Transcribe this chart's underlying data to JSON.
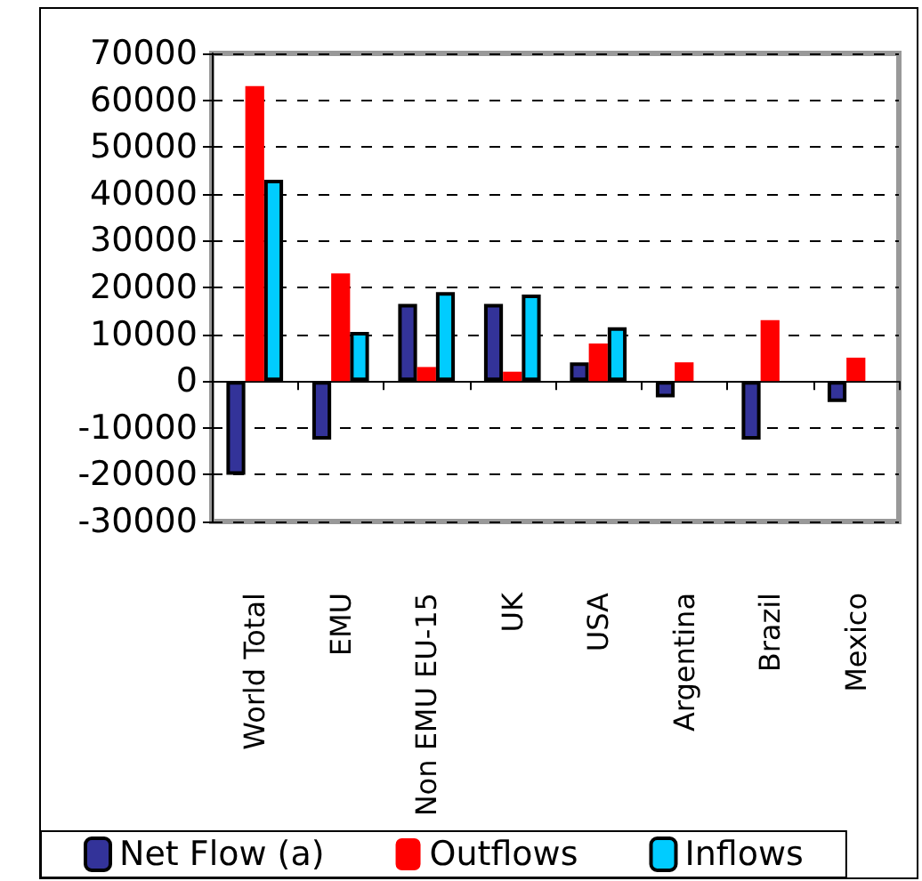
{
  "chart_data": {
    "type": "bar",
    "categories": [
      "World Total",
      "EMU",
      "Non EMU EU-15",
      "UK",
      "USA",
      "Argentina",
      "Brazil",
      "Mexico"
    ],
    "series": [
      {
        "name": "Net Flow (a)",
        "color": "#333399",
        "values": [
          -20000,
          -12500,
          16500,
          16500,
          4000,
          -3500,
          -12500,
          -4500
        ]
      },
      {
        "name": "Outflows",
        "color": "#ff0000",
        "values": [
          63000,
          23000,
          3000,
          2000,
          8000,
          4000,
          13000,
          5000
        ]
      },
      {
        "name": "Inflows",
        "color": "#00ccff",
        "values": [
          43000,
          10500,
          19000,
          18500,
          11500,
          null,
          null,
          null
        ]
      }
    ],
    "ylim": [
      -30000,
      70000
    ],
    "yticks": [
      -30000,
      -20000,
      -10000,
      0,
      10000,
      20000,
      30000,
      40000,
      50000,
      60000,
      70000
    ],
    "grid": "y",
    "legend": "bottom"
  }
}
